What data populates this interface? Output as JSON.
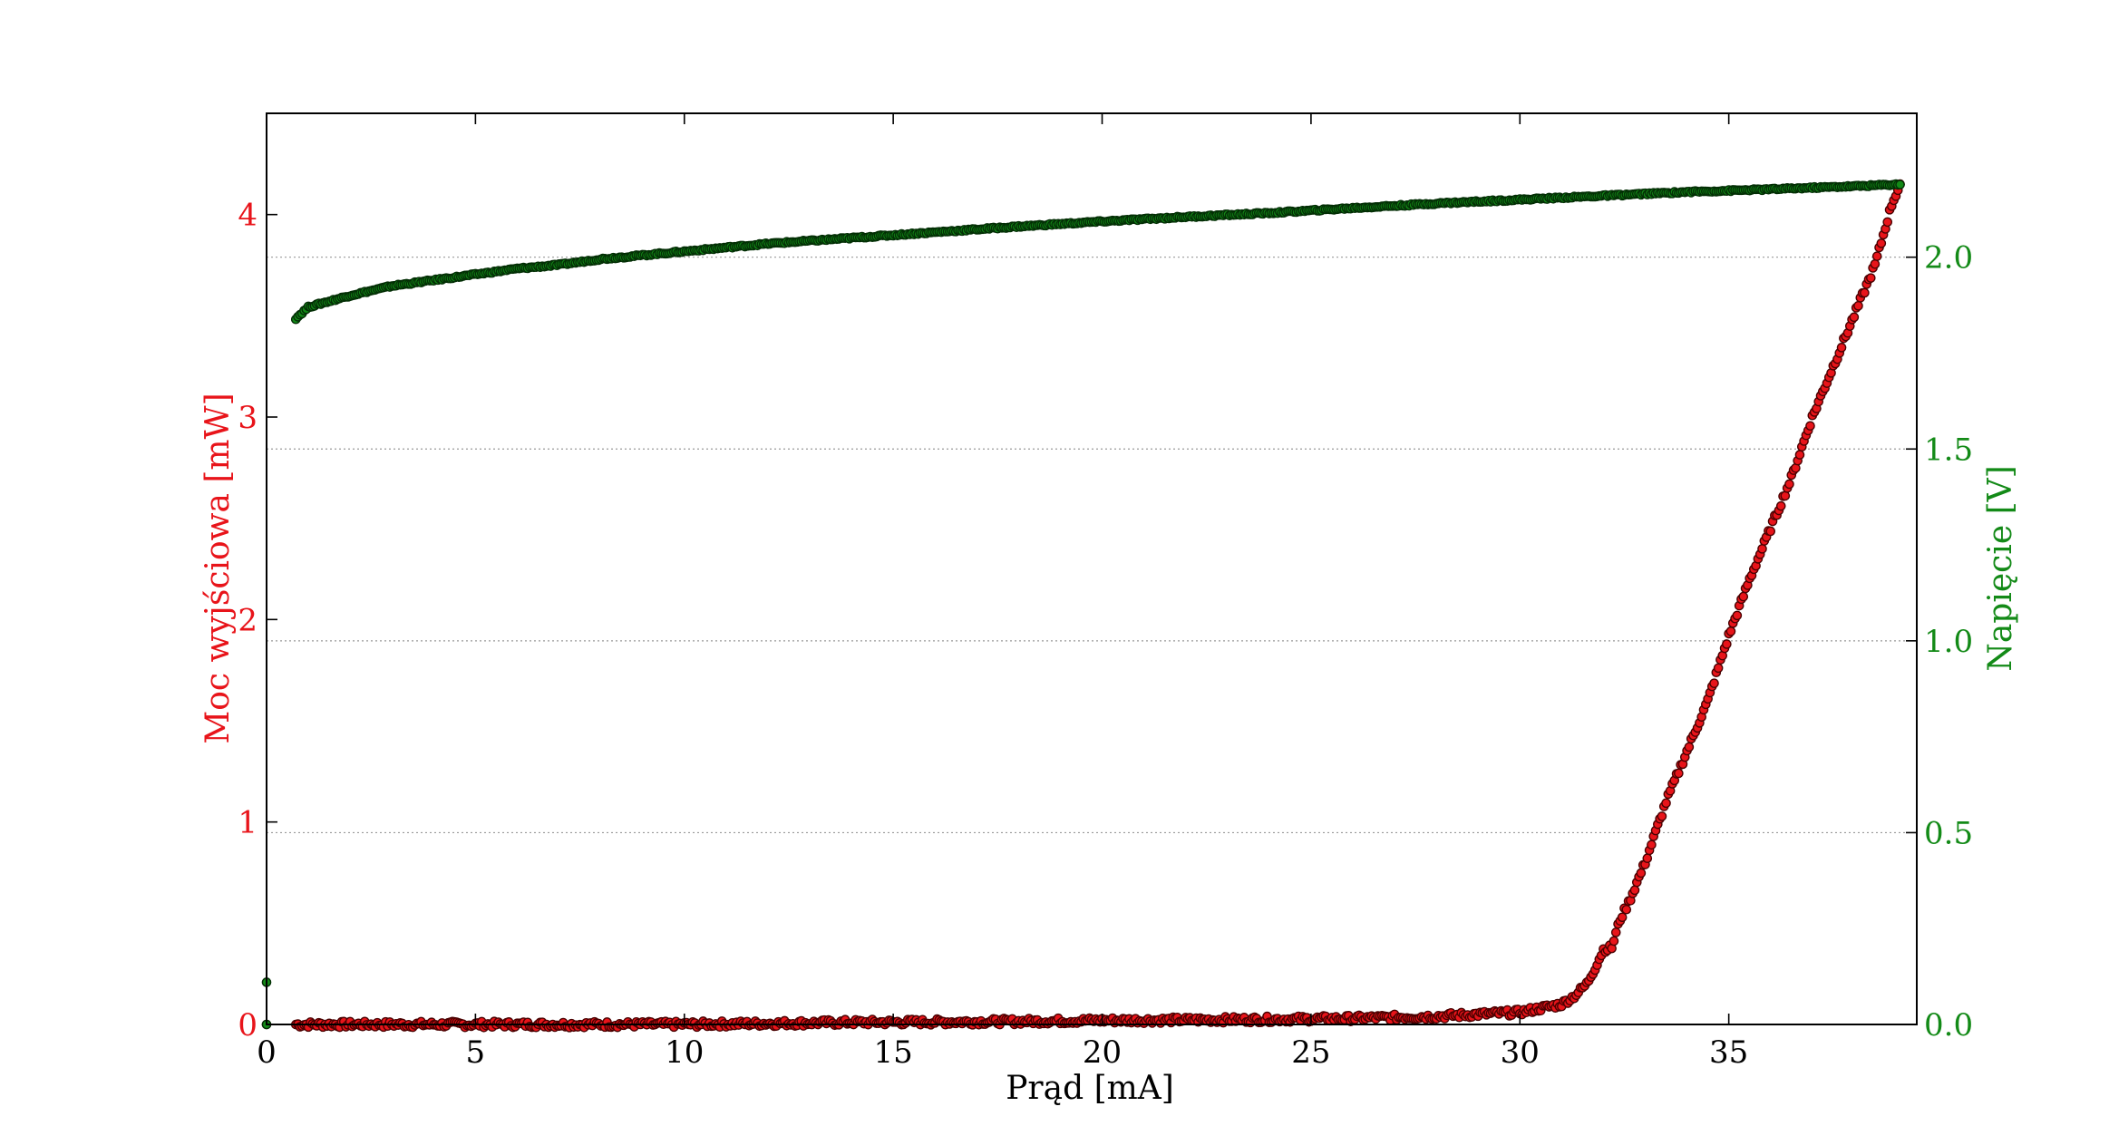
{
  "chart_data": {
    "type": "scatter",
    "title": "",
    "xlabel": "Prąd [mA]",
    "ylabel_left": "Moc wyjściowa [mW]",
    "ylabel_right": "Napięcie [V]",
    "xlim": [
      0,
      39.5
    ],
    "ylim_left": [
      0,
      4.5
    ],
    "ylim_right": [
      0,
      2.375
    ],
    "x_ticks": [
      {
        "value": 0,
        "label": "0"
      },
      {
        "value": 5,
        "label": "5"
      },
      {
        "value": 10,
        "label": "10"
      },
      {
        "value": 15,
        "label": "15"
      },
      {
        "value": 20,
        "label": "20"
      },
      {
        "value": 25,
        "label": "25"
      },
      {
        "value": 30,
        "label": "30"
      },
      {
        "value": 35,
        "label": "35"
      }
    ],
    "y_left_ticks": [
      {
        "value": 0,
        "label": "0"
      },
      {
        "value": 1,
        "label": "1"
      },
      {
        "value": 2,
        "label": "2"
      },
      {
        "value": 3,
        "label": "3"
      },
      {
        "value": 4,
        "label": "4"
      }
    ],
    "y_right_ticks": [
      {
        "value": 0.0,
        "label": "0.0"
      },
      {
        "value": 0.5,
        "label": "0.5"
      },
      {
        "value": 1.0,
        "label": "1.0"
      },
      {
        "value": 1.5,
        "label": "1.5"
      },
      {
        "value": 2.0,
        "label": "2.0"
      }
    ],
    "grid": "horizontal-dotted-right-axis",
    "colors": {
      "left_axis": "#e8141a",
      "right_axis": "#138a17",
      "frame": "#000000",
      "grid": "#999999"
    },
    "series": [
      {
        "axis": "left",
        "color": "#e8141a",
        "x": [
          0,
          0.7,
          2,
          4,
          6,
          8,
          10,
          12,
          14,
          16,
          18,
          20,
          22,
          24,
          26,
          28,
          29,
          30,
          30.5,
          31,
          31.3,
          31.6,
          31.8,
          32,
          32.2,
          32.4,
          32.6,
          33,
          33.5,
          34,
          34.5,
          35,
          35.5,
          36,
          36.5,
          37,
          37.5,
          38,
          38.5,
          38.9,
          39.1
        ],
        "y": [
          0,
          0.0,
          0.0,
          0.0,
          0.0,
          0.0,
          0.0,
          0.005,
          0.01,
          0.012,
          0.015,
          0.02,
          0.022,
          0.025,
          0.03,
          0.04,
          0.05,
          0.06,
          0.08,
          0.1,
          0.14,
          0.2,
          0.28,
          0.37,
          0.38,
          0.52,
          0.6,
          0.8,
          1.1,
          1.35,
          1.6,
          1.92,
          2.2,
          2.45,
          2.7,
          3.0,
          3.25,
          3.5,
          3.75,
          4.05,
          4.15
        ]
      },
      {
        "axis": "right",
        "color": "#138a17",
        "x": [
          0,
          0,
          0.7,
          1,
          2,
          3,
          4,
          5,
          6,
          7,
          8,
          9,
          10,
          12,
          14,
          16,
          18,
          20,
          22,
          24,
          26,
          28,
          30,
          32,
          34,
          36,
          38,
          39.1
        ],
        "y": [
          0,
          0.11,
          1.84,
          1.87,
          1.9,
          1.925,
          1.94,
          1.955,
          1.97,
          1.98,
          1.995,
          2.005,
          2.015,
          2.035,
          2.05,
          2.065,
          2.08,
          2.093,
          2.105,
          2.115,
          2.128,
          2.14,
          2.15,
          2.16,
          2.17,
          2.177,
          2.185,
          2.19
        ]
      }
    ]
  }
}
